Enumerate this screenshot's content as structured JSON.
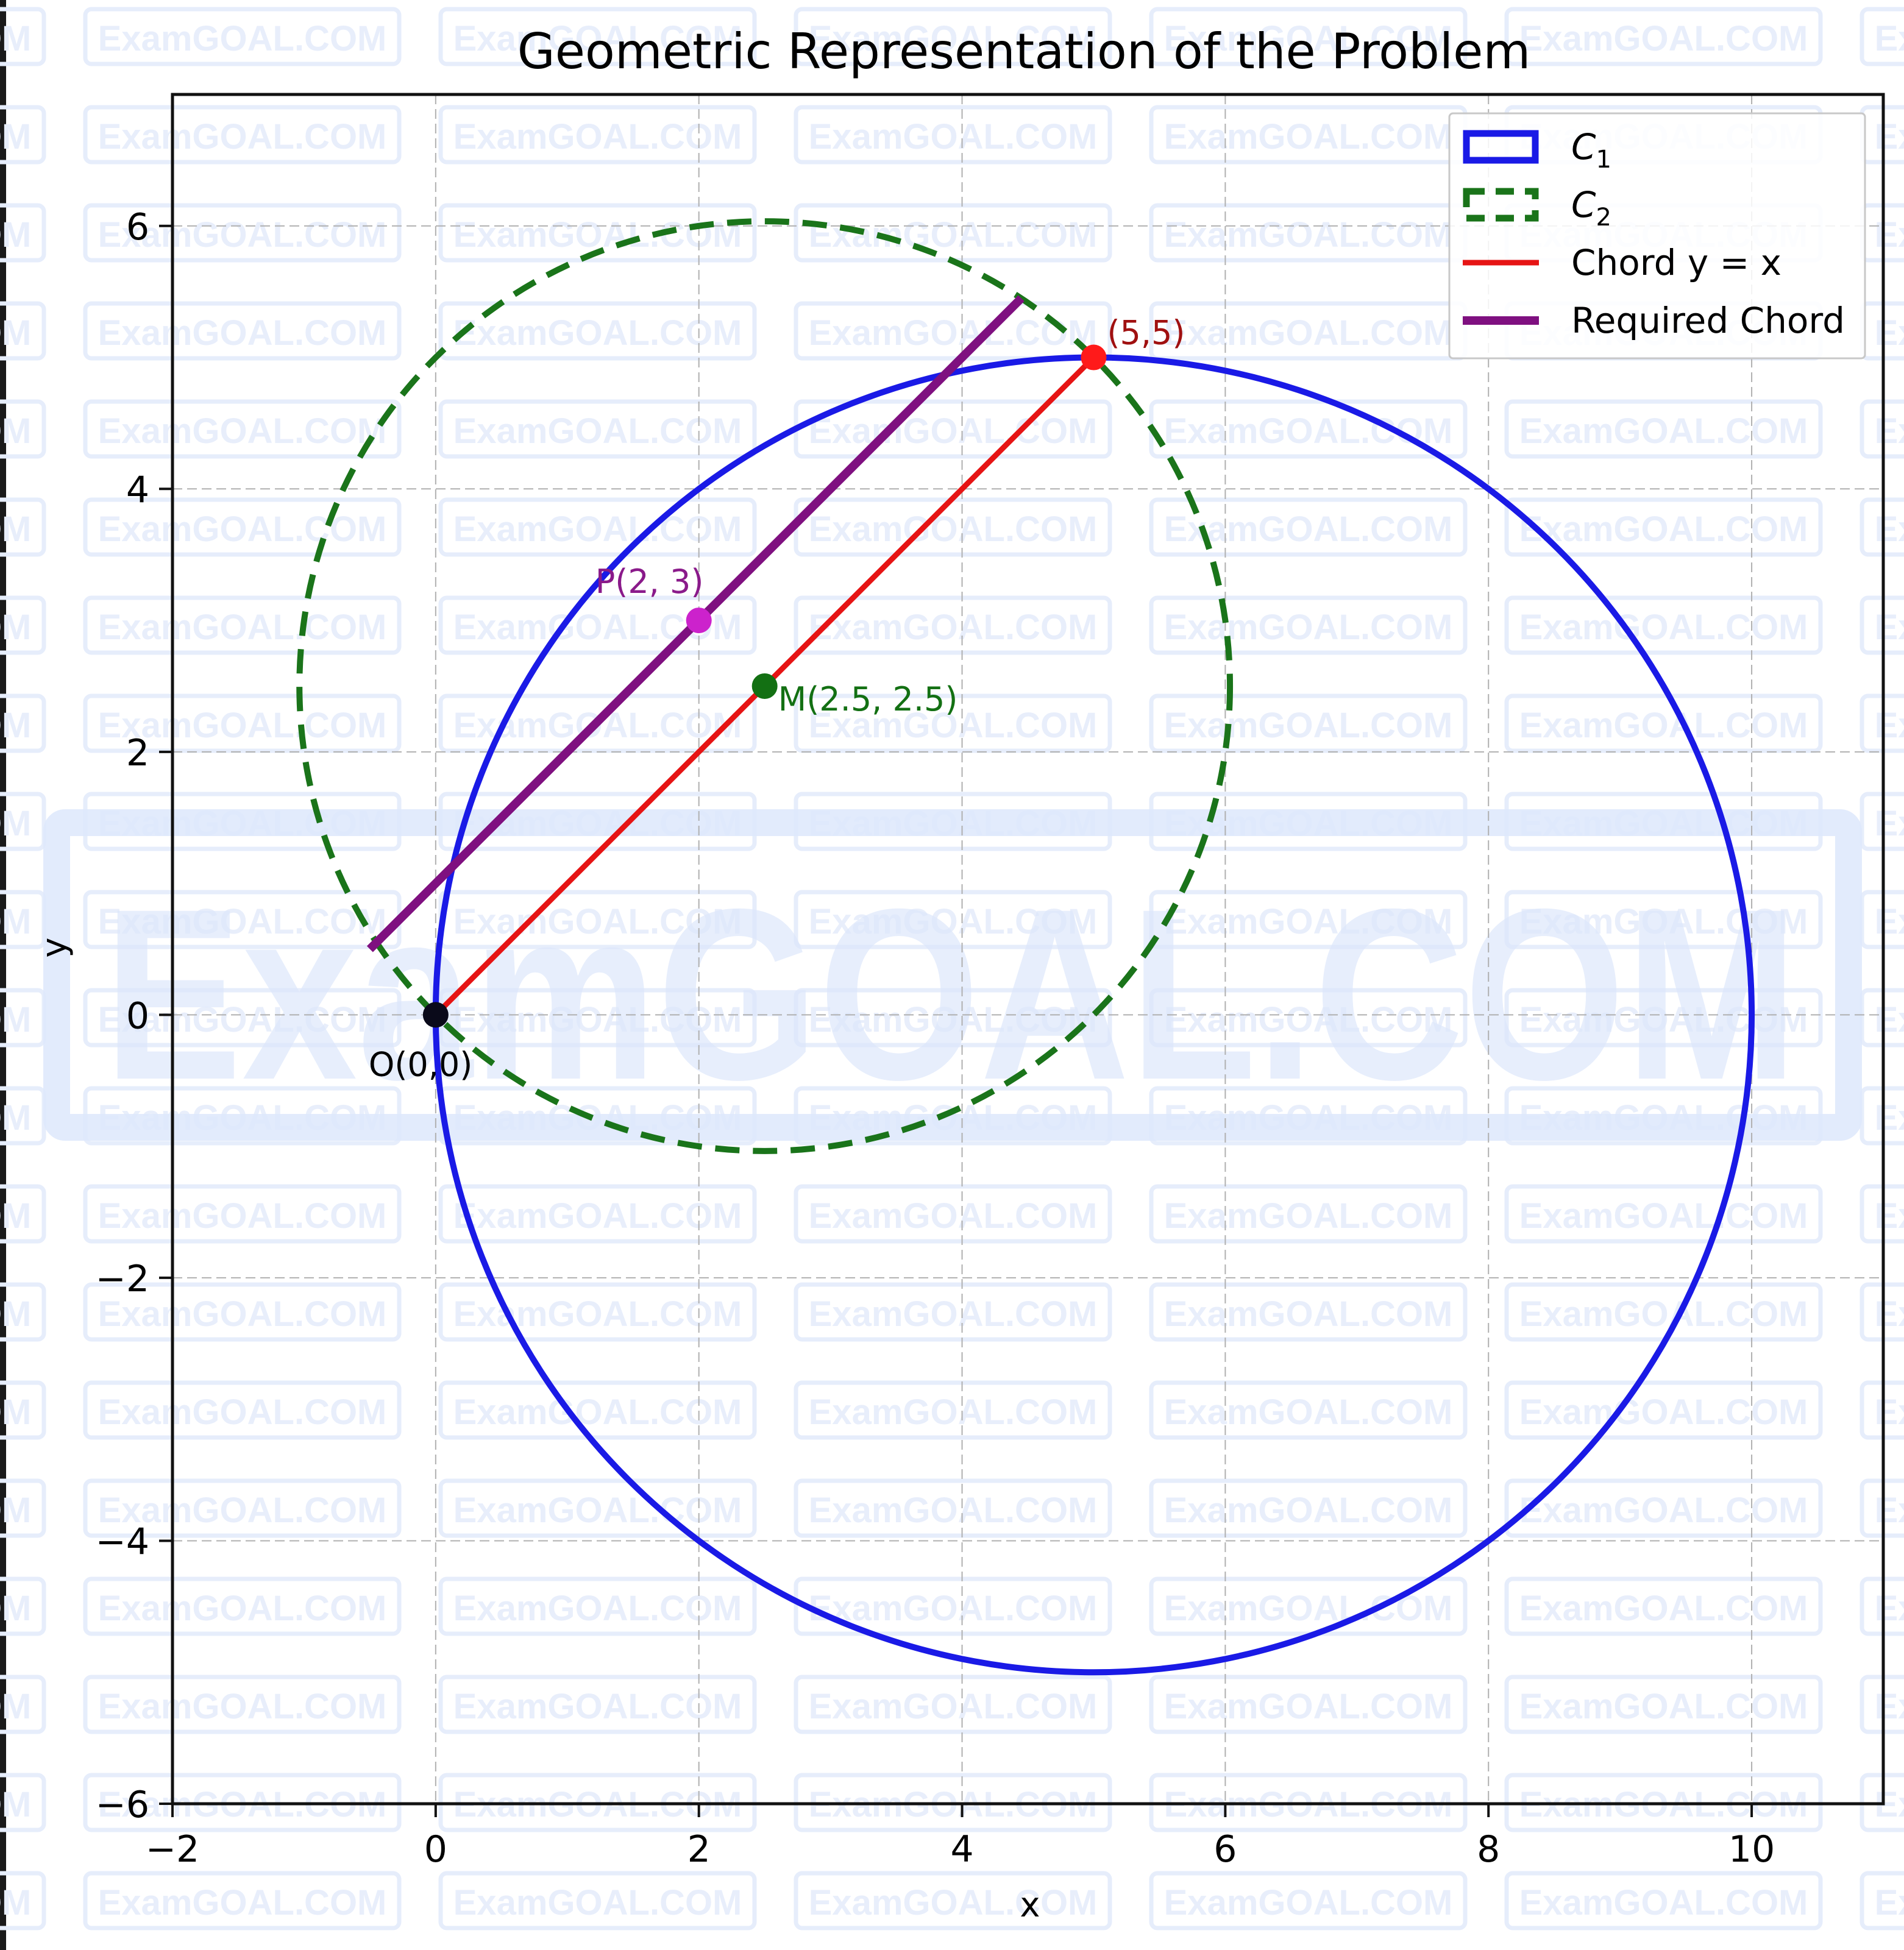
{
  "chart_data": {
    "type": "line",
    "title": "Geometric Representation of the Problem",
    "xlabel": "x",
    "ylabel": "y",
    "xlim": [
      -2,
      11
    ],
    "ylim": [
      -6,
      7
    ],
    "xticks": [
      -2,
      0,
      2,
      4,
      6,
      8,
      10
    ],
    "yticks": [
      -6,
      -4,
      -2,
      0,
      2,
      4,
      6
    ],
    "xtick_labels": [
      "−2",
      "0",
      "2",
      "4",
      "6",
      "8",
      "10"
    ],
    "ytick_labels": [
      "−6",
      "−4",
      "−2",
      "0",
      "2",
      "4",
      "6"
    ],
    "grid": true,
    "aspect": "equal",
    "legend_position": "upper right",
    "series": [
      {
        "name": "C₁",
        "kind": "circle",
        "center": [
          5,
          0
        ],
        "radius": 5,
        "color": "#1a1ae6",
        "style": "solid"
      },
      {
        "name": "C₂",
        "kind": "circle",
        "center": [
          2.5,
          2.5
        ],
        "radius": 3.5355,
        "color": "#1a741a",
        "style": "dashed"
      },
      {
        "name": "Chord y = x",
        "kind": "segment",
        "from": [
          0,
          0
        ],
        "to": [
          5,
          5
        ],
        "color": "#e61414",
        "style": "solid"
      },
      {
        "name": "Required Chord",
        "kind": "segment",
        "from": [
          -0.5,
          0.5
        ],
        "to": [
          4.45,
          5.45
        ],
        "color": "#7f1080",
        "style": "solid"
      }
    ],
    "points": [
      {
        "label": "O(0,0)",
        "x": 0,
        "y": 0,
        "color": "#0a0a1a",
        "label_color": "#000000"
      },
      {
        "label": "(5,5)",
        "x": 5,
        "y": 5,
        "color": "#ff1a1a",
        "label_color": "#a01010"
      },
      {
        "label": "P(2, 3)",
        "x": 2,
        "y": 3,
        "color": "#cc22cc",
        "label_color": "#8a1a8a"
      },
      {
        "label": "M(2.5, 2.5)",
        "x": 2.5,
        "y": 2.5,
        "color": "#137013",
        "label_color": "#137013"
      }
    ],
    "legend": [
      {
        "label": "C",
        "sub": "1",
        "kind": "patch-solid",
        "color": "#1a1ae6"
      },
      {
        "label": "C",
        "sub": "2",
        "kind": "patch-dashed",
        "color": "#1a741a"
      },
      {
        "label": "Chord y = x",
        "kind": "line",
        "color": "#e61414"
      },
      {
        "label": "Required Chord",
        "kind": "line",
        "color": "#7f1080"
      }
    ]
  },
  "watermark": {
    "text": "ExamGOAL.COM",
    "big_text": "ExamGOAL.COM"
  }
}
